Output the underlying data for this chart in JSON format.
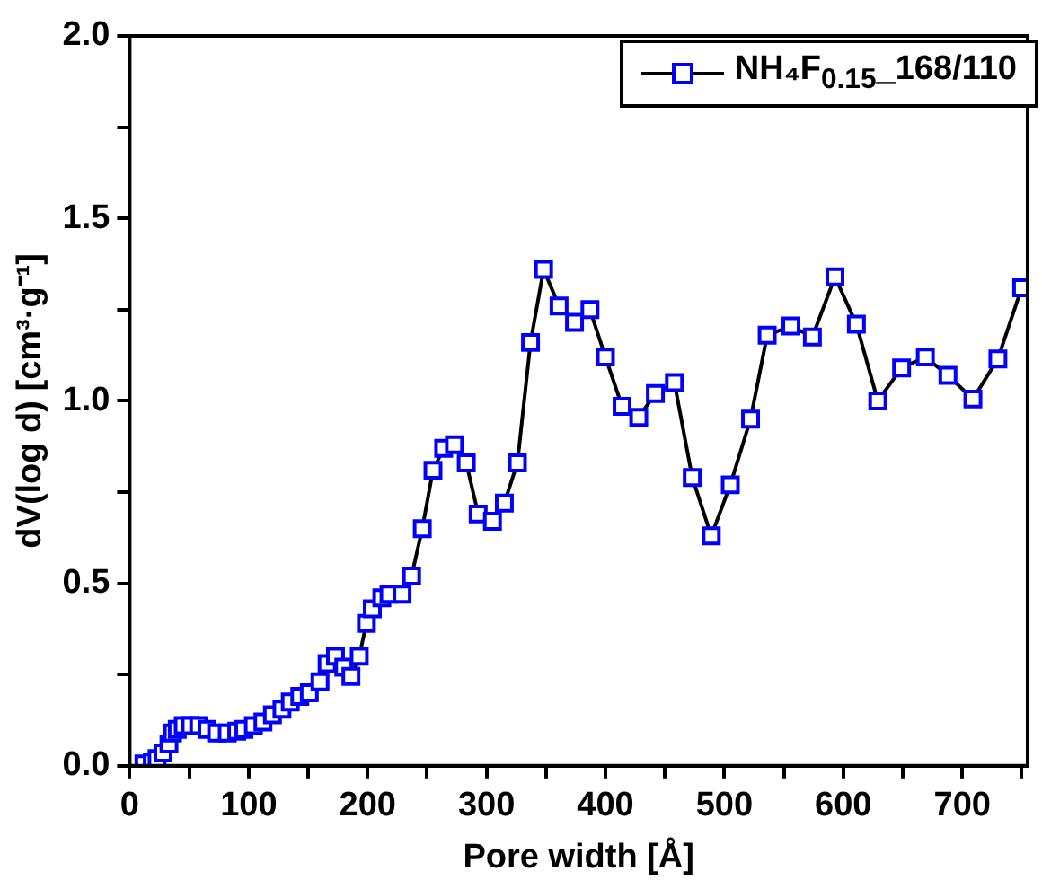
{
  "chart_data": {
    "type": "line",
    "xlabel": "Pore width [Å]",
    "ylabel": "dV(log d) [cm³·g⁻¹]",
    "xlim": [
      0,
      755
    ],
    "ylim": [
      0,
      2.0
    ],
    "xticks": [
      0,
      {
        "value": 50,
        "label": null
      },
      100,
      {
        "value": 150,
        "label": null
      },
      200,
      {
        "value": 250,
        "label": null
      },
      300,
      {
        "value": 350,
        "label": null
      },
      400,
      {
        "value": 450,
        "label": null
      },
      500,
      {
        "value": 550,
        "label": null
      },
      600,
      {
        "value": 650,
        "label": null
      },
      700,
      {
        "value": 750,
        "label": null
      }
    ],
    "yticks": [
      {
        "value": 0,
        "label": "0.0"
      },
      {
        "value": 0.25,
        "label": null
      },
      {
        "value": 0.5,
        "label": "0.5"
      },
      {
        "value": 0.75,
        "label": null
      },
      {
        "value": 1,
        "label": "1.0"
      },
      {
        "value": 1.25,
        "label": null
      },
      {
        "value": 1.5,
        "label": "1.5"
      },
      {
        "value": 1.75,
        "label": null
      },
      {
        "value": 2,
        "label": "2.0"
      }
    ],
    "grid": false,
    "legend": "top right",
    "marker": "square",
    "line_style": "solid",
    "series": [
      {
        "name": "NH₄F$_{0.15}$_168/110",
        "color": "#0000ff",
        "x": [
          12,
          19,
          23,
          28,
          33,
          36,
          40,
          45,
          51,
          58,
          65,
          73,
          82,
          90,
          96,
          104,
          112,
          120,
          128,
          135,
          143,
          151,
          160,
          166,
          173,
          180,
          186,
          193,
          199,
          204,
          212,
          218,
          229,
          237,
          246,
          255,
          264,
          273,
          283,
          293,
          305,
          315,
          326,
          337,
          348,
          361,
          374,
          387,
          400,
          414,
          428,
          442,
          458,
          473,
          489,
          505,
          522,
          536,
          556,
          574,
          593,
          611,
          629,
          649,
          669,
          688,
          709,
          730,
          750
        ],
        "values": [
          0.005,
          0.01,
          0.02,
          0.035,
          0.06,
          0.09,
          0.1,
          0.11,
          0.11,
          0.11,
          0.1,
          0.09,
          0.09,
          0.095,
          0.1,
          0.11,
          0.12,
          0.14,
          0.155,
          0.175,
          0.19,
          0.2,
          0.23,
          0.28,
          0.3,
          0.27,
          0.245,
          0.3,
          0.39,
          0.43,
          0.46,
          0.47,
          0.47,
          0.52,
          0.65,
          0.81,
          0.87,
          0.88,
          0.83,
          0.69,
          0.67,
          0.72,
          0.83,
          1.16,
          1.36,
          1.26,
          1.215,
          1.25,
          1.12,
          0.985,
          0.955,
          1.02,
          1.05,
          0.79,
          0.63,
          0.77,
          0.95,
          1.18,
          1.205,
          1.175,
          1.34,
          1.21,
          1.0,
          1.09,
          1.12,
          1.07,
          1.005,
          1.115,
          1.31
        ]
      }
    ]
  }
}
